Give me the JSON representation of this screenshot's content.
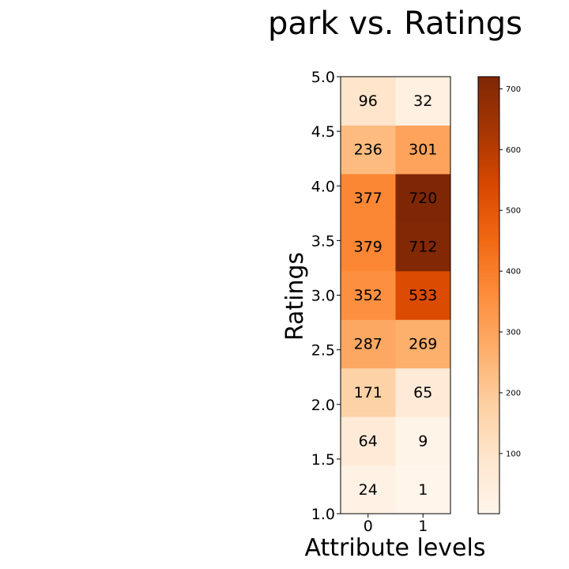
{
  "chart_data": {
    "type": "heatmap",
    "title": "park vs. Ratings",
    "xlabel": "Attribute levels",
    "ylabel": "Ratings",
    "x_categories": [
      "0",
      "1"
    ],
    "y_categories": [
      "1.0",
      "1.5",
      "2.0",
      "2.5",
      "3.0",
      "3.5",
      "4.0",
      "4.5",
      "5.0"
    ],
    "values": [
      [
        24,
        1
      ],
      [
        64,
        9
      ],
      [
        171,
        65
      ],
      [
        287,
        269
      ],
      [
        352,
        533
      ],
      [
        379,
        712
      ],
      [
        377,
        720
      ],
      [
        236,
        301
      ],
      [
        96,
        32
      ]
    ],
    "colormap": "Oranges",
    "colorbar": {
      "min": 1,
      "max": 720,
      "ticks": [
        100,
        200,
        300,
        400,
        500,
        600,
        700
      ]
    },
    "grid": false
  },
  "colors": {
    "cmap_stops": [
      "#fff5eb",
      "#fee6ce",
      "#fdd0a2",
      "#fdae6b",
      "#fd8d3c",
      "#f16913",
      "#d94801",
      "#a63603",
      "#7f2704"
    ],
    "text": "#000000",
    "frame": "#000000"
  }
}
